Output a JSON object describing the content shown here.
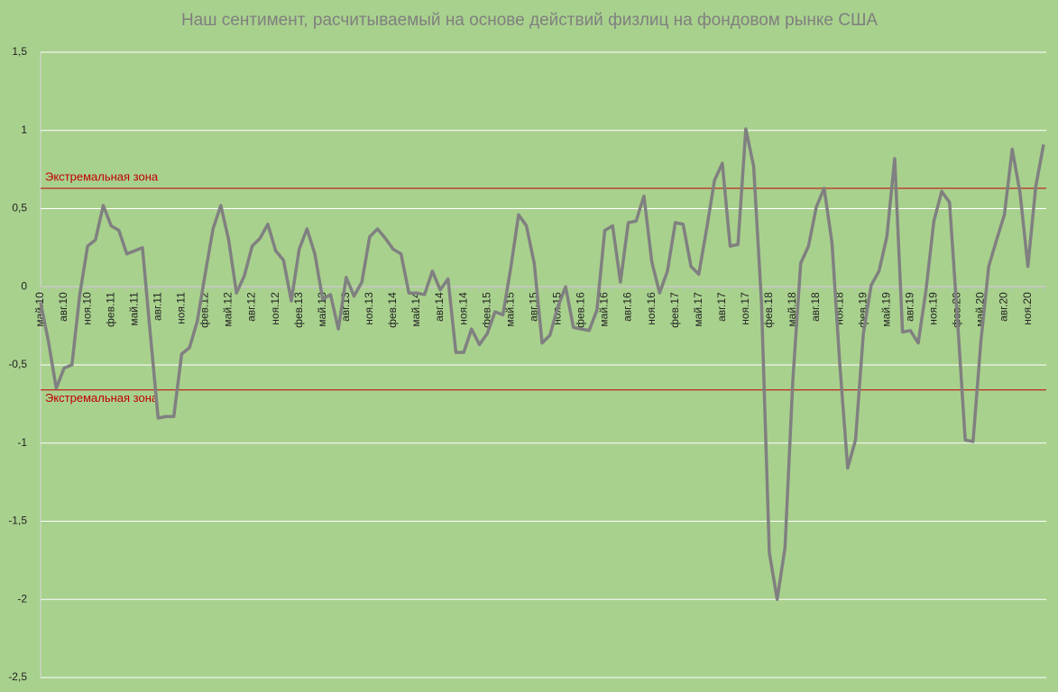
{
  "chart_data": {
    "type": "line",
    "title": "Наш сентимент, расчитываемый на основе действий физлиц на фондовом рынке США",
    "categories": [
      "май.10",
      null,
      null,
      "авг.10",
      null,
      null,
      "ноя.10",
      null,
      null,
      "фев.11",
      null,
      null,
      "май.11",
      null,
      null,
      "авг.11",
      null,
      null,
      "ноя.11",
      null,
      null,
      "фев.12",
      null,
      null,
      "май.12",
      null,
      null,
      "авг.12",
      null,
      null,
      "ноя.12",
      null,
      null,
      "фев.13",
      null,
      null,
      "май.13",
      null,
      null,
      "авг.13",
      null,
      null,
      "ноя.13",
      null,
      null,
      "фев.14",
      null,
      null,
      "май.14",
      null,
      null,
      "авг.14",
      null,
      null,
      "ноя.14",
      null,
      null,
      "фев.15",
      null,
      null,
      "май.15",
      null,
      null,
      "авг.15",
      null,
      null,
      "ноя.15",
      null,
      null,
      "фев.16",
      null,
      null,
      "май.16",
      null,
      null,
      "авг.16",
      null,
      null,
      "ноя.16",
      null,
      null,
      "фев.17",
      null,
      null,
      "май.17",
      null,
      null,
      "авг.17",
      null,
      null,
      "ноя.17",
      null,
      null,
      "фев.18",
      null,
      null,
      "май.18",
      null,
      null,
      "авг.18",
      null,
      null,
      "ноя.18",
      null,
      null,
      "фев.19",
      null,
      null,
      "май.19",
      null,
      null,
      "авг.19",
      null,
      null,
      "ноя.19",
      null,
      null,
      "фев.20",
      null,
      null,
      "май.20",
      null,
      null,
      "авг.20",
      null,
      null,
      "ноя.20",
      null,
      null
    ],
    "values": [
      -0.1,
      -0.35,
      -0.65,
      -0.52,
      -0.5,
      -0.05,
      0.26,
      0.3,
      0.52,
      0.39,
      0.36,
      0.21,
      0.23,
      0.25,
      -0.3,
      -0.84,
      -0.83,
      -0.83,
      -0.43,
      -0.39,
      -0.22,
      0.08,
      0.37,
      0.52,
      0.3,
      -0.04,
      0.07,
      0.26,
      0.31,
      0.4,
      0.23,
      0.17,
      -0.09,
      0.24,
      0.37,
      0.21,
      -0.08,
      -0.05,
      -0.27,
      0.06,
      -0.06,
      0.03,
      0.32,
      0.37,
      0.31,
      0.24,
      0.21,
      -0.04,
      -0.04,
      -0.05,
      0.1,
      -0.02,
      0.05,
      -0.42,
      -0.42,
      -0.27,
      -0.37,
      -0.3,
      -0.16,
      -0.18,
      0.12,
      0.46,
      0.39,
      0.15,
      -0.36,
      -0.31,
      -0.13,
      0.0,
      -0.26,
      -0.27,
      -0.28,
      -0.15,
      0.36,
      0.39,
      0.03,
      0.41,
      0.42,
      0.58,
      0.16,
      -0.04,
      0.1,
      0.41,
      0.4,
      0.13,
      0.08,
      0.37,
      0.68,
      0.79,
      0.26,
      0.27,
      1.01,
      0.77,
      -0.1,
      -1.7,
      -2.0,
      -1.67,
      -0.6,
      0.15,
      0.26,
      0.51,
      0.63,
      0.28,
      -0.5,
      -1.16,
      -0.98,
      -0.3,
      0.01,
      0.1,
      0.32,
      0.82,
      -0.29,
      -0.28,
      -0.36,
      -0.02,
      0.42,
      0.61,
      0.54,
      -0.2,
      -0.98,
      -0.99,
      -0.35,
      0.13,
      0.3,
      0.46,
      0.88,
      0.6,
      0.13,
      0.64,
      0.91
    ],
    "color": "#808080",
    "ylim": [
      -2.5,
      1.5
    ],
    "yticks": [
      {
        "value": 1.5,
        "label": "1,5"
      },
      1,
      {
        "value": 0.5,
        "label": "0,5"
      },
      0,
      {
        "value": -0.5,
        "label": "-0,5"
      },
      -1,
      {
        "value": -1.5,
        "label": "-1,5"
      },
      -2,
      {
        "value": -2.5,
        "label": "-2,5"
      }
    ],
    "grid": true,
    "reference_lines": [
      {
        "value": 0.63,
        "label": "Экстремальная зона",
        "color": "#c00000"
      },
      {
        "value": -0.66,
        "label": "Экстремальная зона",
        "color": "#c00000"
      }
    ]
  }
}
